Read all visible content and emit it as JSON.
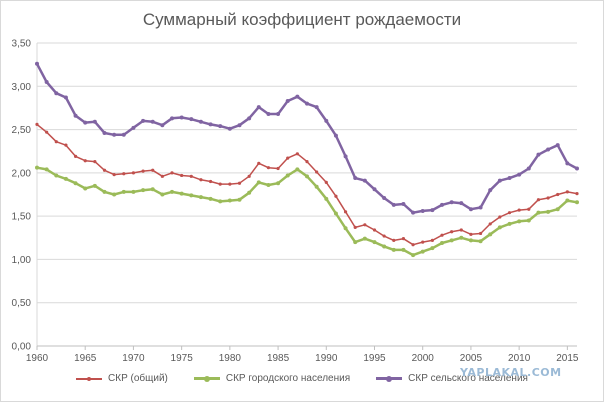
{
  "chart_data": {
    "type": "line",
    "title": "Суммарный коэффициент рождаемости",
    "xlabel": "",
    "ylabel": "",
    "x": [
      1960,
      1961,
      1962,
      1963,
      1964,
      1965,
      1966,
      1967,
      1968,
      1969,
      1970,
      1971,
      1972,
      1973,
      1974,
      1975,
      1976,
      1977,
      1978,
      1979,
      1980,
      1981,
      1982,
      1983,
      1984,
      1985,
      1986,
      1987,
      1988,
      1989,
      1990,
      1991,
      1992,
      1993,
      1994,
      1995,
      1996,
      1997,
      1998,
      1999,
      2000,
      2001,
      2002,
      2003,
      2004,
      2005,
      2006,
      2007,
      2008,
      2009,
      2010,
      2011,
      2012,
      2013,
      2014,
      2015,
      2016
    ],
    "xlim": [
      1960,
      2016
    ],
    "ylim": [
      0,
      3.5
    ],
    "x_ticks": [
      "1960",
      "1965",
      "1970",
      "1975",
      "1980",
      "1985",
      "1990",
      "1995",
      "2000",
      "2005",
      "2010",
      "2015"
    ],
    "x_tick_values": [
      1960,
      1965,
      1970,
      1975,
      1980,
      1985,
      1990,
      1995,
      2000,
      2005,
      2010,
      2015
    ],
    "y_ticks": [
      "0,00",
      "0,50",
      "1,00",
      "1,50",
      "2,00",
      "2,50",
      "3,00",
      "3,50"
    ],
    "y_tick_values": [
      0,
      0.5,
      1,
      1.5,
      2,
      2.5,
      3,
      3.5
    ],
    "grid": true,
    "legend_position": "bottom",
    "series": [
      {
        "name": "СКР (общий)",
        "color": "#c0504d",
        "values": [
          2.56,
          2.47,
          2.36,
          2.32,
          2.19,
          2.14,
          2.13,
          2.03,
          1.98,
          1.99,
          2.0,
          2.02,
          2.03,
          1.96,
          2.0,
          1.97,
          1.96,
          1.92,
          1.9,
          1.87,
          1.87,
          1.88,
          1.96,
          2.11,
          2.06,
          2.05,
          2.17,
          2.22,
          2.13,
          2.01,
          1.89,
          1.73,
          1.55,
          1.37,
          1.4,
          1.34,
          1.27,
          1.22,
          1.24,
          1.17,
          1.2,
          1.22,
          1.28,
          1.32,
          1.34,
          1.29,
          1.3,
          1.41,
          1.49,
          1.54,
          1.57,
          1.58,
          1.69,
          1.71,
          1.75,
          1.78,
          1.76
        ]
      },
      {
        "name": "СКР городского населения",
        "color": "#9bbb59",
        "values": [
          2.06,
          2.04,
          1.97,
          1.93,
          1.88,
          1.82,
          1.85,
          1.78,
          1.75,
          1.78,
          1.78,
          1.8,
          1.81,
          1.75,
          1.78,
          1.76,
          1.74,
          1.72,
          1.7,
          1.67,
          1.68,
          1.69,
          1.77,
          1.89,
          1.86,
          1.88,
          1.97,
          2.04,
          1.96,
          1.84,
          1.7,
          1.53,
          1.36,
          1.2,
          1.24,
          1.2,
          1.15,
          1.11,
          1.11,
          1.05,
          1.09,
          1.13,
          1.19,
          1.22,
          1.25,
          1.22,
          1.21,
          1.29,
          1.37,
          1.41,
          1.44,
          1.45,
          1.54,
          1.55,
          1.58,
          1.68,
          1.66
        ]
      },
      {
        "name": "СКР сельского населения",
        "color": "#8064a2",
        "values": [
          3.26,
          3.05,
          2.92,
          2.87,
          2.66,
          2.58,
          2.59,
          2.46,
          2.44,
          2.44,
          2.52,
          2.6,
          2.59,
          2.55,
          2.63,
          2.64,
          2.62,
          2.59,
          2.56,
          2.54,
          2.51,
          2.55,
          2.63,
          2.76,
          2.68,
          2.68,
          2.83,
          2.88,
          2.8,
          2.76,
          2.6,
          2.43,
          2.19,
          1.94,
          1.91,
          1.81,
          1.71,
          1.63,
          1.64,
          1.54,
          1.56,
          1.57,
          1.63,
          1.66,
          1.65,
          1.58,
          1.6,
          1.8,
          1.91,
          1.94,
          1.98,
          2.05,
          2.21,
          2.27,
          2.32,
          2.11,
          2.05
        ]
      }
    ]
  },
  "watermark": "YAPLAKAL.COM"
}
